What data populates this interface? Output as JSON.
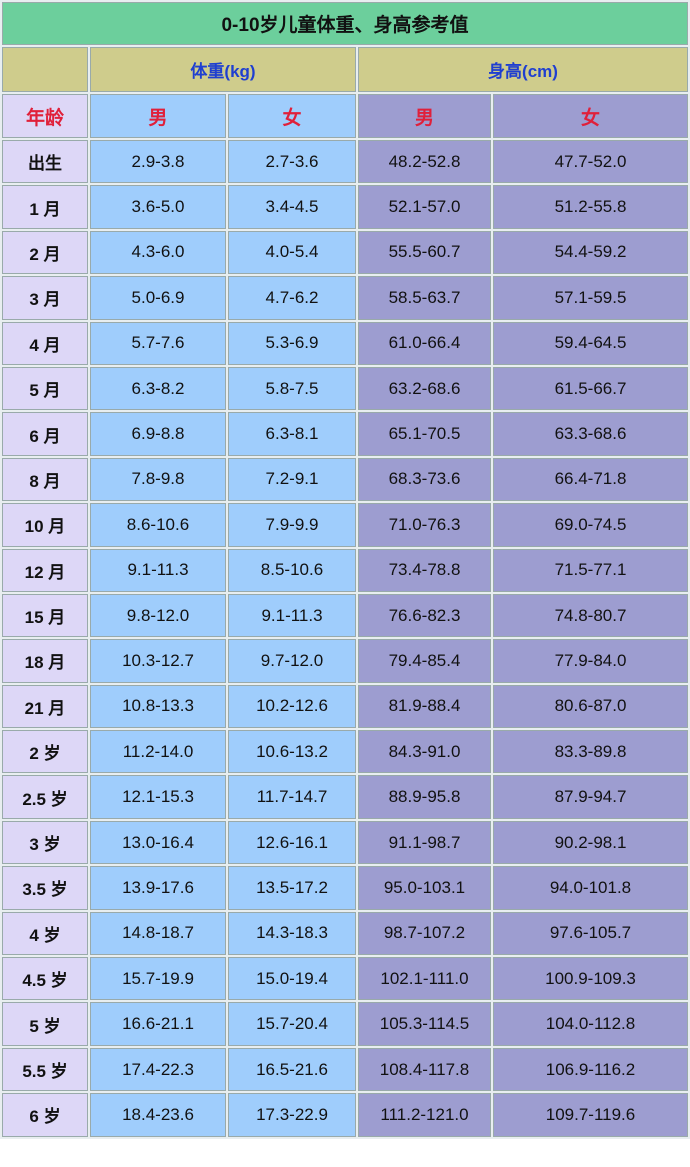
{
  "title": "0-10岁儿童体重、身高参考值",
  "groups": {
    "weight": "体重(kg)",
    "height": "身高(cm)"
  },
  "subheaders": {
    "age": "年龄",
    "weight_male": "男",
    "weight_female": "女",
    "height_male": "男",
    "height_female": "女"
  },
  "colors": {
    "title_bg": "#6ccf9c",
    "group_bg": "#cfcc8c",
    "age_bg": "#ddd7f7",
    "weight_bg": "#9fcdfc",
    "height_bg": "#9d9dd0",
    "group_text": "#1f3fd0",
    "sex_text": "#e0203a"
  },
  "rows": [
    [
      "出生",
      "2.9-3.8",
      "2.7-3.6",
      "48.2-52.8",
      "47.7-52.0"
    ],
    [
      "1 月",
      "3.6-5.0",
      "3.4-4.5",
      "52.1-57.0",
      "51.2-55.8"
    ],
    [
      "2 月",
      "4.3-6.0",
      "4.0-5.4",
      "55.5-60.7",
      "54.4-59.2"
    ],
    [
      "3 月",
      "5.0-6.9",
      "4.7-6.2",
      "58.5-63.7",
      "57.1-59.5"
    ],
    [
      "4 月",
      "5.7-7.6",
      "5.3-6.9",
      "61.0-66.4",
      "59.4-64.5"
    ],
    [
      "5 月",
      "6.3-8.2",
      "5.8-7.5",
      "63.2-68.6",
      "61.5-66.7"
    ],
    [
      "6 月",
      "6.9-8.8",
      "6.3-8.1",
      "65.1-70.5",
      "63.3-68.6"
    ],
    [
      "8 月",
      "7.8-9.8",
      "7.2-9.1",
      "68.3-73.6",
      "66.4-71.8"
    ],
    [
      "10 月",
      "8.6-10.6",
      "7.9-9.9",
      "71.0-76.3",
      "69.0-74.5"
    ],
    [
      "12 月",
      "9.1-11.3",
      "8.5-10.6",
      "73.4-78.8",
      "71.5-77.1"
    ],
    [
      "15 月",
      "9.8-12.0",
      "9.1-11.3",
      "76.6-82.3",
      "74.8-80.7"
    ],
    [
      "18 月",
      "10.3-12.7",
      "9.7-12.0",
      "79.4-85.4",
      "77.9-84.0"
    ],
    [
      "21 月",
      "10.8-13.3",
      "10.2-12.6",
      "81.9-88.4",
      "80.6-87.0"
    ],
    [
      "2 岁",
      "11.2-14.0",
      "10.6-13.2",
      "84.3-91.0",
      "83.3-89.8"
    ],
    [
      "2.5 岁",
      "12.1-15.3",
      "11.7-14.7",
      "88.9-95.8",
      "87.9-94.7"
    ],
    [
      "3 岁",
      "13.0-16.4",
      "12.6-16.1",
      "91.1-98.7",
      "90.2-98.1"
    ],
    [
      "3.5 岁",
      "13.9-17.6",
      "13.5-17.2",
      "95.0-103.1",
      "94.0-101.8"
    ],
    [
      "4 岁",
      "14.8-18.7",
      "14.3-18.3",
      "98.7-107.2",
      "97.6-105.7"
    ],
    [
      "4.5 岁",
      "15.7-19.9",
      "15.0-19.4",
      "102.1-111.0",
      "100.9-109.3"
    ],
    [
      "5 岁",
      "16.6-21.1",
      "15.7-20.4",
      "105.3-114.5",
      "104.0-112.8"
    ],
    [
      "5.5 岁",
      "17.4-22.3",
      "16.5-21.6",
      "108.4-117.8",
      "106.9-116.2"
    ],
    [
      "6 岁",
      "18.4-23.6",
      "17.3-22.9",
      "111.2-121.0",
      "109.7-119.6"
    ]
  ]
}
